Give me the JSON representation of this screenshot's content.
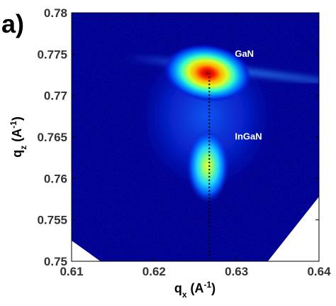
{
  "panel_label": "a)",
  "chart_data": {
    "type": "heatmap",
    "title": "",
    "xlabel": {
      "base": "q",
      "sub": "x",
      "unit_open": " (A",
      "unit_sup": "-1",
      "unit_close": ")"
    },
    "ylabel": {
      "base": "q",
      "sub": "z",
      "unit_open": " (A",
      "unit_sup": "-1",
      "unit_close": ")"
    },
    "xlim": [
      0.61,
      0.64
    ],
    "ylim": [
      0.75,
      0.78
    ],
    "x_ticks": [
      0.61,
      0.62,
      0.63,
      0.64
    ],
    "x_tick_labels": [
      "0.61",
      "0.62",
      "0.63",
      "0.64"
    ],
    "y_ticks": [
      0.75,
      0.755,
      0.76,
      0.765,
      0.77,
      0.775,
      0.78
    ],
    "y_tick_labels": [
      "0.75",
      "0.755",
      "0.76",
      "0.765",
      "0.77",
      "0.775",
      "0.78"
    ],
    "colormap": "jet",
    "background_color": "#00008f",
    "peaks": [
      {
        "name": "GaN",
        "qx": 0.6265,
        "qz": 0.7727
      },
      {
        "name": "InGaN",
        "qx": 0.6265,
        "qz": 0.7615
      }
    ],
    "annotations": [
      {
        "text": "GaN",
        "qx": 0.6298,
        "qz": 0.7747
      },
      {
        "text": "InGaN",
        "qx": 0.6298,
        "qz": 0.7647
      }
    ],
    "vertical_line": {
      "qx": 0.6267,
      "from_qz": 0.7723,
      "to_qz": 0.75,
      "style": "dotted"
    },
    "streak": {
      "from": [
        0.6165,
        0.7747
      ],
      "to": [
        0.64,
        0.7718
      ]
    },
    "masked_regions": [
      {
        "points": [
          [
            0.61,
            0.7525
          ],
          [
            0.6135,
            0.75
          ],
          [
            0.61,
            0.75
          ]
        ]
      },
      {
        "points": [
          [
            0.6338,
            0.75
          ],
          [
            0.64,
            0.7578
          ],
          [
            0.64,
            0.75
          ]
        ]
      }
    ],
    "grid": false,
    "legend": "none"
  }
}
